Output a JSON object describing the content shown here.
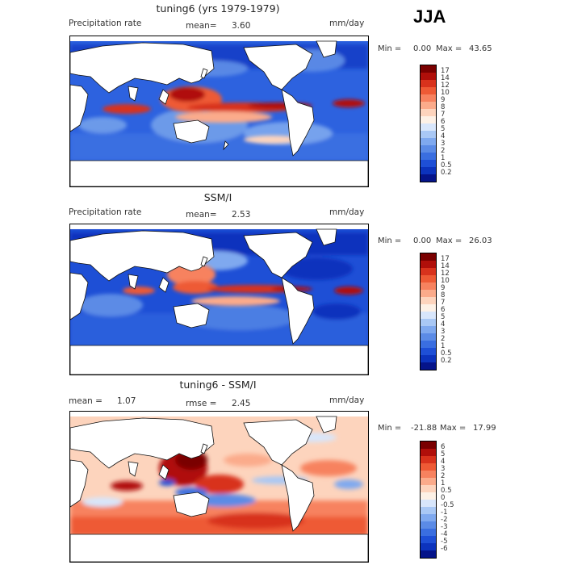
{
  "season": "JJA",
  "panels": [
    {
      "title": "tuning6 (yrs 1979-1979)",
      "left_label": "Precipitation rate",
      "mid_label": "mean=",
      "mid_value": "3.60",
      "right_label": "mm/day",
      "min_label": "Min =",
      "min_value": "0.00",
      "max_label": "Max =",
      "max_value": "43.65",
      "colorbar": {
        "labels": [
          "17",
          "14",
          "12",
          "10",
          "9",
          "8",
          "7",
          "6",
          "5",
          "4",
          "3",
          "2",
          "1",
          "0.5",
          "0.2"
        ],
        "colors": [
          "#7a0000",
          "#b00f0a",
          "#d8321c",
          "#ee5a35",
          "#f7825f",
          "#fbab8b",
          "#fdd4bd",
          "#fdf1e6",
          "#d8e6fb",
          "#a9c8f5",
          "#7fa9ef",
          "#5b8be6",
          "#3a6ee0",
          "#1e4fd6",
          "#0c33bd",
          "#05148a"
        ]
      }
    },
    {
      "title": "SSM/I",
      "left_label": "Precipitation rate",
      "mid_label": "mean=",
      "mid_value": "2.53",
      "right_label": "mm/day",
      "min_label": "Min =",
      "min_value": "0.00",
      "max_label": "Max =",
      "max_value": "26.03",
      "colorbar": {
        "labels": [
          "17",
          "14",
          "12",
          "10",
          "9",
          "8",
          "7",
          "6",
          "5",
          "4",
          "3",
          "2",
          "1",
          "0.5",
          "0.2"
        ],
        "colors": [
          "#7a0000",
          "#b00f0a",
          "#d8321c",
          "#ee5a35",
          "#f7825f",
          "#fbab8b",
          "#fdd4bd",
          "#fdf1e6",
          "#d8e6fb",
          "#a9c8f5",
          "#7fa9ef",
          "#5b8be6",
          "#3a6ee0",
          "#1e4fd6",
          "#0c33bd",
          "#05148a"
        ]
      }
    },
    {
      "title": "tuning6 - SSM/I",
      "left_label": "mean =",
      "left_value": "1.07",
      "mid_label": "rmse =",
      "mid_value": "2.45",
      "right_label": "mm/day",
      "min_label": "Min =",
      "min_value": "-21.88",
      "max_label": "Max =",
      "max_value": "17.99",
      "colorbar": {
        "labels": [
          "6",
          "5",
          "4",
          "3",
          "2",
          "1",
          "0.5",
          "0",
          "-0.5",
          "-1",
          "-2",
          "-3",
          "-4",
          "-5",
          "-6"
        ],
        "colors": [
          "#7a0000",
          "#b00f0a",
          "#d8321c",
          "#ee5a35",
          "#f7825f",
          "#fbab8b",
          "#fdd4bd",
          "#fdf1e6",
          "#d8e6fb",
          "#a9c8f5",
          "#7fa9ef",
          "#5b8be6",
          "#3a6ee0",
          "#1e4fd6",
          "#0c33bd",
          "#05148a"
        ]
      }
    }
  ]
}
